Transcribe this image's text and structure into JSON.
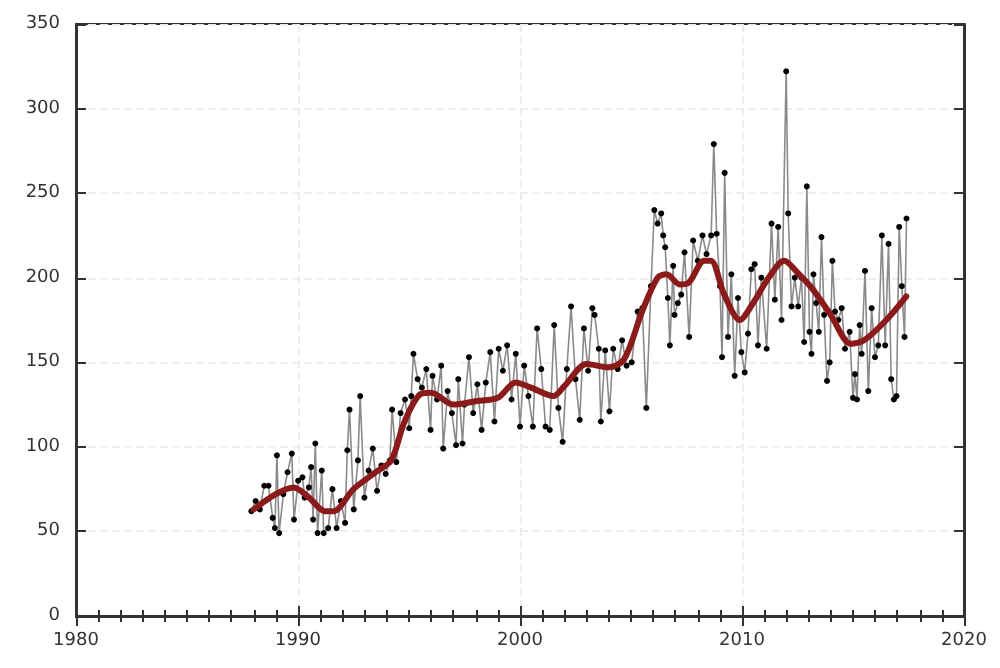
{
  "chart_data": {
    "type": "line",
    "xlim": [
      1980,
      2020
    ],
    "xticks": [
      1980,
      1990,
      2000,
      2010,
      2020
    ],
    "ylim": [
      0,
      350
    ],
    "yticks": [
      0,
      50,
      100,
      150,
      200,
      250,
      300,
      350
    ],
    "grid": true,
    "marker": "circle",
    "series": [
      {
        "color": "#8a8a8a",
        "x": [
          1987.9,
          1988.09,
          1988.28,
          1988.48,
          1988.67,
          1988.86,
          1988.96,
          1989.05,
          1989.15,
          1989.34,
          1989.53,
          1989.72,
          1989.82,
          1990.01,
          1990.2,
          1990.3,
          1990.49,
          1990.59,
          1990.68,
          1990.78,
          1990.88,
          1991.07,
          1991.16,
          1991.36,
          1991.55,
          1991.74,
          1991.93,
          1992.12,
          1992.22,
          1992.32,
          1992.51,
          1992.7,
          1992.8,
          1992.99,
          1993.18,
          1993.37,
          1993.56,
          1993.76,
          1993.95,
          1994.14,
          1994.24,
          1994.43,
          1994.62,
          1994.82,
          1995.01,
          1995.1,
          1995.2,
          1995.39,
          1995.58,
          1995.78,
          1995.97,
          1996.06,
          1996.26,
          1996.45,
          1996.54,
          1996.74,
          1996.93,
          1997.12,
          1997.22,
          1997.41,
          1997.5,
          1997.7,
          1997.89,
          1998.08,
          1998.27,
          1998.46,
          1998.66,
          1998.85,
          1999.04,
          1999.23,
          1999.42,
          1999.62,
          1999.81,
          2000,
          2000.19,
          2000.38,
          2000.58,
          2000.77,
          2000.96,
          2001.15,
          2001.34,
          2001.54,
          2001.73,
          2001.92,
          2002.11,
          2002.3,
          2002.5,
          2002.69,
          2002.88,
          2003.07,
          2003.26,
          2003.36,
          2003.55,
          2003.64,
          2003.84,
          2004.03,
          2004.2,
          2004.4,
          2004.6,
          2004.8,
          2005.03,
          2005.3,
          2005.51,
          2005.69,
          2005.9,
          2006.05,
          2006.2,
          2006.36,
          2006.45,
          2006.54,
          2006.66,
          2006.75,
          2006.9,
          2006.96,
          2007.11,
          2007.26,
          2007.41,
          2007.62,
          2007.8,
          2008.01,
          2008.22,
          2008.4,
          2008.61,
          2008.73,
          2008.86,
          2009.01,
          2009.1,
          2009.22,
          2009.37,
          2009.52,
          2009.67,
          2009.82,
          2009.97,
          2010.12,
          2010.27,
          2010.42,
          2010.57,
          2010.72,
          2010.87,
          2011.11,
          2011.33,
          2011.48,
          2011.63,
          2011.78,
          2011.99,
          2012.08,
          2012.23,
          2012.38,
          2012.53,
          2012.68,
          2012.8,
          2012.92,
          2013.04,
          2013.13,
          2013.22,
          2013.34,
          2013.46,
          2013.58,
          2013.7,
          2013.83,
          2013.95,
          2014.07,
          2014.19,
          2014.34,
          2014.49,
          2014.64,
          2014.85,
          2015,
          2015.09,
          2015.18,
          2015.3,
          2015.39,
          2015.54,
          2015.69,
          2015.84,
          2015.99,
          2016.14,
          2016.3,
          2016.45,
          2016.6,
          2016.72,
          2016.84,
          2016.96,
          2017.08,
          2017.2,
          2017.32,
          2017.41
        ],
        "values": [
          62,
          68,
          63,
          77,
          77,
          58,
          52,
          95,
          49,
          72,
          85,
          96,
          57,
          80,
          82,
          70,
          76,
          88,
          57,
          102,
          49,
          86,
          49,
          52,
          75,
          52,
          68,
          55,
          98,
          122,
          63,
          92,
          130,
          70,
          86,
          99,
          74,
          89,
          84,
          92,
          122,
          91,
          120,
          128,
          111,
          130,
          155,
          140,
          135,
          146,
          110,
          142,
          128,
          148,
          99,
          133,
          120,
          101,
          140,
          102,
          125,
          153,
          120,
          137,
          110,
          138,
          156,
          115,
          158,
          145,
          160,
          128,
          155,
          112,
          148,
          130,
          112,
          170,
          146,
          112,
          110,
          172,
          123,
          103,
          146,
          183,
          140,
          116,
          170,
          145,
          182,
          178,
          158,
          115,
          157,
          121,
          158,
          146,
          163,
          148,
          150,
          180,
          182,
          123,
          195,
          240,
          232,
          238,
          225,
          218,
          188,
          160,
          207,
          178,
          185,
          190,
          215,
          165,
          222,
          210,
          225,
          214,
          225,
          279,
          226,
          195,
          153,
          262,
          165,
          202,
          142,
          188,
          156,
          144,
          167,
          205,
          208,
          160,
          200,
          158,
          232,
          187,
          230,
          175,
          322,
          238,
          183,
          200,
          183,
          200,
          162,
          254,
          168,
          155,
          202,
          185,
          168,
          224,
          178,
          139,
          150,
          210,
          180,
          175,
          182,
          158,
          168,
          129,
          143,
          128,
          172,
          155,
          204,
          133,
          182,
          153,
          160,
          225,
          160,
          220,
          140,
          128,
          130,
          230,
          195,
          165,
          235
        ]
      },
      {
        "color": "#8b1a1a",
        "marker": "none",
        "x": [
          1988,
          1989,
          1989.8,
          1990.5,
          1991.2,
          1991.6,
          1992.5,
          1993.5,
          1994.2,
          1994.8,
          1995.5,
          1996,
          1997,
          1998,
          1999,
          1999.8,
          2000.5,
          2001.5,
          2002,
          2003,
          2004,
          2004.7,
          2005.5,
          2006.2,
          2006.6,
          2007.2,
          2007.6,
          2008.3,
          2008.6,
          2009.2,
          2009.9,
          2010.5,
          2011.2,
          2011.9,
          2012.5,
          2013.2,
          2014,
          2014.9,
          2015.5,
          2016.5,
          2017.4
        ],
        "values": [
          63,
          72,
          76,
          70,
          62,
          62,
          75,
          85,
          92,
          115,
          131,
          132,
          125,
          127,
          129,
          138,
          135,
          130,
          136,
          149,
          147,
          152,
          180,
          200,
          202,
          196,
          197,
          210,
          210,
          190,
          175,
          185,
          200,
          210,
          203,
          193,
          178,
          161,
          163,
          175,
          189
        ]
      }
    ]
  }
}
